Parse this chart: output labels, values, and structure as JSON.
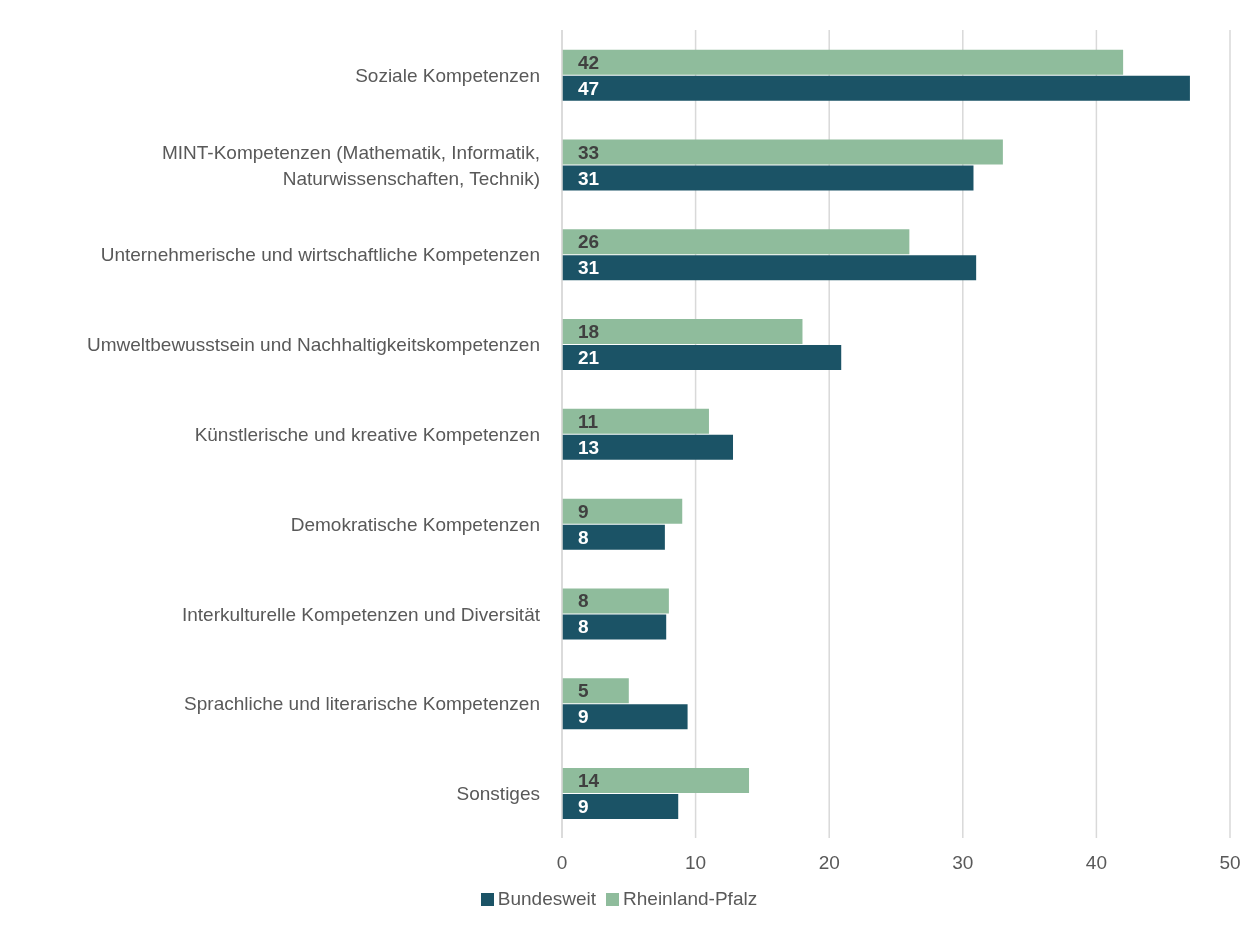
{
  "chart_data": {
    "type": "bar",
    "orientation": "horizontal",
    "categories": [
      "Soziale Kompetenzen",
      "MINT-Kompetenzen (Mathematik, Informatik, Naturwissenschaften, Technik)",
      "Unternehmerische und wirtschaftliche Kompetenzen",
      "Umweltbewusstsein und Nachhaltigkeitskompetenzen",
      "Künstlerische und kreative Kompetenzen",
      "Demokratische Kompetenzen",
      "Interkulturelle Kompetenzen und Diversität",
      "Sprachliche und literarische Kompetenzen",
      "Sonstiges"
    ],
    "series": [
      {
        "name": "Rheinland-Pfalz",
        "color": "#8fbc9c",
        "values": [
          42,
          33,
          26,
          18,
          11,
          9,
          8,
          5,
          14
        ],
        "value_labels": [
          "42",
          "33",
          "26",
          "18",
          "11",
          "9",
          "8",
          "5",
          "14"
        ]
      },
      {
        "name": "Bundesweit",
        "color": "#1b5366",
        "values": [
          47,
          30.8,
          31,
          20.9,
          12.8,
          7.7,
          7.8,
          9.4,
          8.7
        ],
        "value_labels": [
          "47",
          "31",
          "31",
          "21",
          "13",
          "8",
          "8",
          "9",
          "9"
        ]
      }
    ],
    "xlim": [
      0,
      50
    ],
    "xticks": [
      0,
      10,
      20,
      30,
      40,
      50
    ],
    "grid": "x",
    "legend": "bottom"
  }
}
